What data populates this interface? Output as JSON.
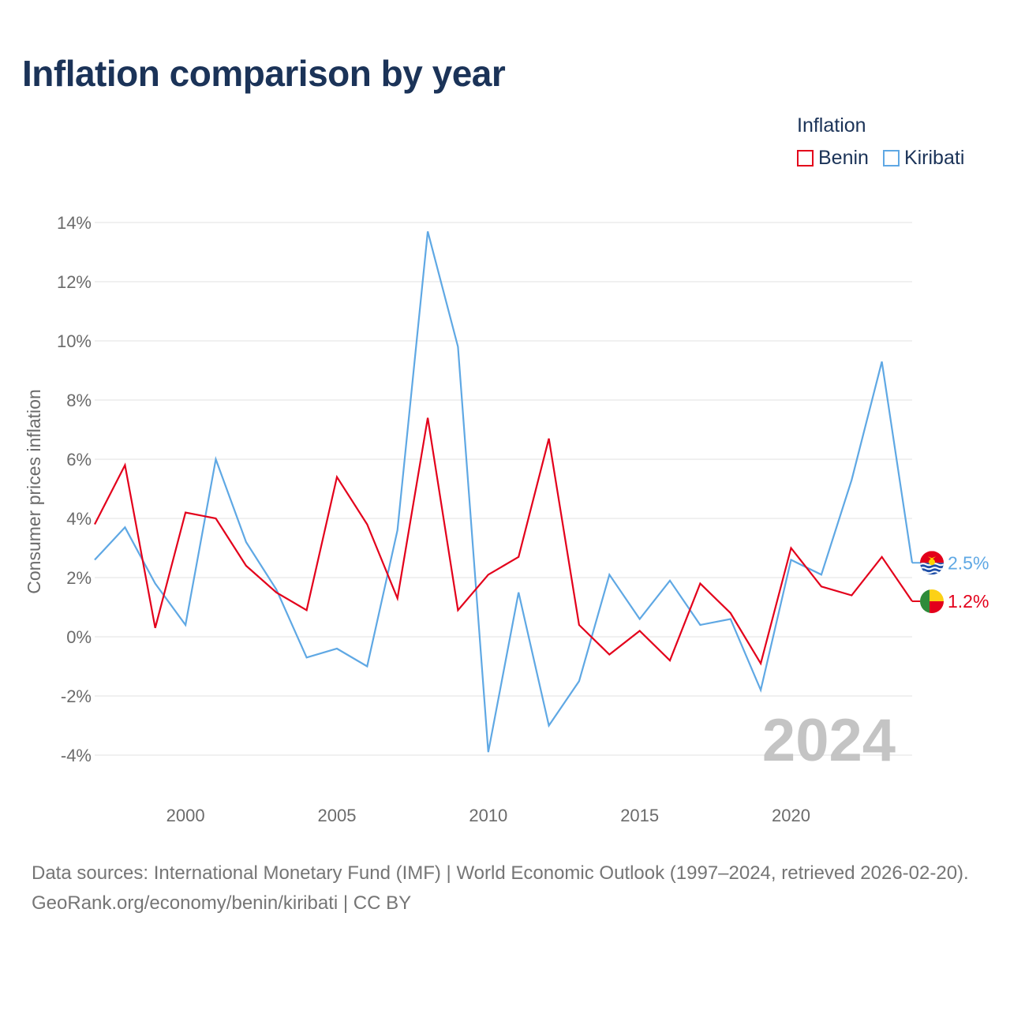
{
  "title": "Inflation comparison by year",
  "legend": {
    "title": "Inflation",
    "items": [
      {
        "label": "Benin",
        "color": "#e3001b"
      },
      {
        "label": "Kiribati",
        "color": "#5fa8e4"
      }
    ]
  },
  "year_label": "2024",
  "footer": {
    "sources": "Data sources: International Monetary Fund (IMF) | World Economic Outlook (1997–2024, retrieved 2026-02-20).",
    "credit": "GeoRank.org/economy/benin/kiribati | CC BY"
  },
  "chart_data": {
    "type": "line",
    "title": "Inflation comparison by year",
    "xlabel": "",
    "ylabel": "Consumer prices inflation",
    "x": [
      1997,
      1998,
      1999,
      2000,
      2001,
      2002,
      2003,
      2004,
      2005,
      2006,
      2007,
      2008,
      2009,
      2010,
      2011,
      2012,
      2013,
      2014,
      2015,
      2016,
      2017,
      2018,
      2019,
      2020,
      2021,
      2022,
      2023,
      2024
    ],
    "xlim": [
      1997,
      2024
    ],
    "ylim": [
      -4.5,
      14
    ],
    "x_ticks": [
      2000,
      2005,
      2010,
      2015,
      2020
    ],
    "x_tick_labels": [
      "2000",
      "2005",
      "2010",
      "2015",
      "2020"
    ],
    "y_ticks": [
      -4,
      -2,
      0,
      2,
      4,
      6,
      8,
      10,
      12,
      14
    ],
    "y_tick_labels": [
      "-4%",
      "-2%",
      "0%",
      "2%",
      "4%",
      "6%",
      "8%",
      "10%",
      "12%",
      "14%"
    ],
    "grid": true,
    "series": [
      {
        "name": "Benin",
        "color": "#e3001b",
        "values": [
          3.8,
          5.8,
          0.3,
          4.2,
          4.0,
          2.4,
          1.5,
          0.9,
          5.4,
          3.8,
          1.3,
          7.4,
          0.9,
          2.1,
          2.7,
          6.7,
          0.4,
          -0.6,
          0.2,
          -0.8,
          1.8,
          0.8,
          -0.9,
          3.0,
          1.7,
          1.4,
          2.7,
          1.2
        ],
        "end_label": "1.2%"
      },
      {
        "name": "Kiribati",
        "color": "#5fa8e4",
        "values": [
          2.6,
          3.7,
          1.8,
          0.4,
          6.0,
          3.2,
          1.6,
          -0.7,
          -0.4,
          -1.0,
          3.6,
          13.7,
          9.8,
          -3.9,
          1.5,
          -3.0,
          -1.5,
          2.1,
          0.6,
          1.9,
          0.4,
          0.6,
          -1.8,
          2.6,
          2.1,
          5.3,
          9.3,
          2.5
        ],
        "end_label": "2.5%"
      }
    ]
  }
}
